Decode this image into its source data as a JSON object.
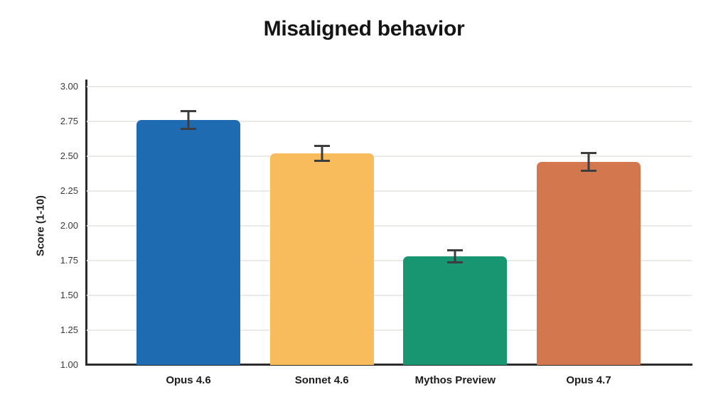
{
  "page": {
    "background_color": "#ffffff"
  },
  "chart_data": {
    "type": "bar",
    "title": "Misaligned behavior",
    "xlabel": "",
    "ylabel": "Score (1-10)",
    "categories": [
      "Opus 4.6",
      "Sonnet 4.6",
      "Mythos Preview",
      "Opus 4.7"
    ],
    "values": [
      2.76,
      2.52,
      1.78,
      2.46
    ],
    "error_margins": [
      0.07,
      0.06,
      0.05,
      0.07
    ],
    "bar_colors": [
      "#1e6bb2",
      "#f9bc5d",
      "#189571",
      "#d3774f"
    ],
    "ylim": [
      1.0,
      3.0
    ],
    "ytick_labels": [
      "1.00",
      "1.25",
      "1.50",
      "1.75",
      "2.00",
      "2.25",
      "2.50",
      "2.75",
      "3.00"
    ],
    "grid": "horizontal",
    "legend": "none",
    "axis_color": "#2b2b2b",
    "grid_color": "#eceae7",
    "error_bar_color": "#3d3d3d",
    "title_color": "#141414",
    "tick_label_color": "#3a3a3a"
  }
}
